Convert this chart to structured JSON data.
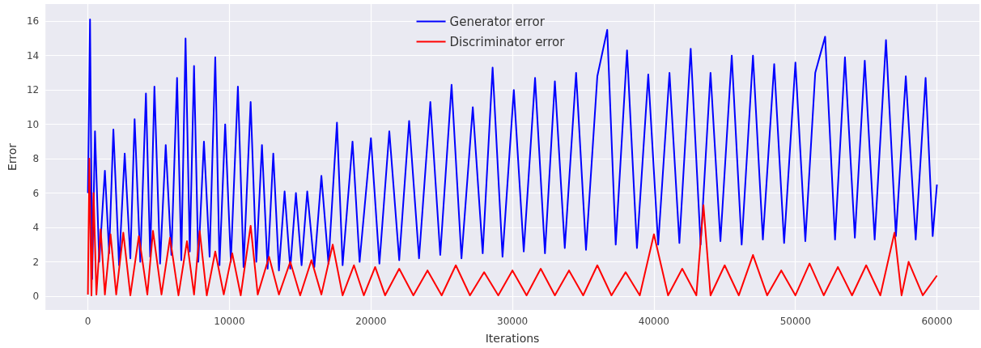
{
  "chart_data": {
    "type": "line",
    "xlabel": "Iterations",
    "ylabel": "Error",
    "xlim": [
      -3000,
      63000
    ],
    "xticks": [
      0,
      10000,
      20000,
      30000,
      40000,
      50000,
      60000
    ],
    "ylim": [
      -0.8,
      17
    ],
    "yticks": [
      0,
      2,
      4,
      6,
      8,
      10,
      12,
      14,
      16
    ],
    "grid": true,
    "legend": "top",
    "marker": "none",
    "line_style": "solid",
    "series": [
      {
        "name": "Generator error",
        "color": "#0000ff",
        "x": [
          0,
          150,
          300,
          500,
          800,
          1200,
          1500,
          1800,
          2200,
          2600,
          3000,
          3300,
          3700,
          4100,
          4400,
          4700,
          5100,
          5500,
          5900,
          6300,
          6600,
          6900,
          7200,
          7500,
          7800,
          8200,
          8600,
          9000,
          9300,
          9700,
          10100,
          10600,
          11000,
          11500,
          11900,
          12300,
          12700,
          13100,
          13500,
          13900,
          14300,
          14700,
          15100,
          15500,
          16000,
          16500,
          17000,
          17600,
          18000,
          18700,
          19200,
          20000,
          20600,
          21300,
          22000,
          22700,
          23400,
          24200,
          24900,
          25700,
          26400,
          27200,
          27900,
          28600,
          29300,
          30100,
          30800,
          31600,
          32300,
          33000,
          33700,
          34500,
          35200,
          36000,
          36700,
          37300,
          38100,
          38800,
          39600,
          40300,
          41100,
          41800,
          42600,
          43300,
          44000,
          44700,
          45500,
          46200,
          47000,
          47700,
          48500,
          49200,
          50000,
          50700,
          51400,
          52100,
          52800,
          53500,
          54200,
          54900,
          55600,
          56400,
          57100,
          57800,
          58500,
          59200,
          59700,
          60000
        ],
        "values": [
          6,
          16.1,
          1.0,
          9.6,
          2.0,
          7.3,
          2.5,
          9.7,
          1.8,
          8.3,
          2.2,
          10.3,
          2.0,
          11.8,
          2.3,
          12.2,
          1.9,
          8.8,
          2.4,
          12.7,
          2.1,
          15.0,
          2.6,
          13.4,
          2.0,
          9.0,
          2.3,
          13.9,
          1.8,
          10.0,
          2.0,
          12.2,
          1.7,
          11.3,
          2.0,
          8.8,
          1.6,
          8.3,
          1.5,
          6.1,
          1.6,
          6.0,
          1.8,
          6.1,
          1.7,
          7.0,
          1.9,
          10.1,
          1.8,
          9.0,
          2.0,
          9.2,
          1.9,
          9.6,
          2.1,
          10.2,
          2.2,
          11.3,
          2.4,
          12.3,
          2.2,
          11.0,
          2.5,
          13.3,
          2.3,
          12.0,
          2.6,
          12.7,
          2.5,
          12.5,
          2.8,
          13.0,
          2.7,
          12.8,
          15.5,
          3.0,
          14.3,
          2.8,
          12.9,
          3.0,
          13.0,
          3.1,
          14.4,
          3.0,
          13.0,
          3.2,
          14.0,
          3.0,
          14.0,
          3.3,
          13.5,
          3.1,
          13.6,
          3.2,
          13.0,
          15.1,
          3.3,
          13.9,
          3.4,
          13.7,
          3.3,
          14.9,
          3.5,
          12.8,
          3.3,
          12.7,
          3.5,
          6.5
        ]
      },
      {
        "name": "Discriminator error",
        "color": "#ff0000",
        "x": [
          0,
          100,
          250,
          400,
          600,
          900,
          1200,
          1600,
          2000,
          2500,
          3000,
          3600,
          4200,
          4600,
          5200,
          5800,
          6400,
          7000,
          7500,
          7900,
          8400,
          9000,
          9600,
          10200,
          10800,
          11500,
          12000,
          12800,
          13500,
          14300,
          15000,
          15800,
          16500,
          17300,
          18000,
          18800,
          19500,
          20300,
          21000,
          22000,
          23000,
          24000,
          25000,
          26000,
          27000,
          28000,
          29000,
          30000,
          31000,
          32000,
          33000,
          34000,
          35000,
          36000,
          37000,
          38000,
          39000,
          40000,
          41000,
          42000,
          43000,
          43500,
          44000,
          45000,
          46000,
          47000,
          48000,
          49000,
          50000,
          51000,
          52000,
          53000,
          54000,
          55000,
          56000,
          57000,
          57500,
          58000,
          59000,
          60000
        ],
        "values": [
          0.1,
          8.0,
          0.05,
          6.0,
          0.1,
          3.9,
          0.1,
          3.6,
          0.1,
          3.7,
          0.05,
          3.5,
          0.1,
          3.8,
          0.1,
          3.4,
          0.05,
          3.2,
          0.1,
          3.8,
          0.05,
          2.6,
          0.1,
          2.5,
          0.05,
          4.1,
          0.1,
          2.3,
          0.1,
          2.0,
          0.05,
          2.1,
          0.1,
          3.0,
          0.05,
          1.8,
          0.05,
          1.7,
          0.05,
          1.6,
          0.05,
          1.5,
          0.05,
          1.8,
          0.05,
          1.4,
          0.05,
          1.5,
          0.05,
          1.6,
          0.05,
          1.5,
          0.05,
          1.8,
          0.05,
          1.4,
          0.05,
          3.6,
          0.05,
          1.6,
          0.05,
          5.3,
          0.05,
          1.8,
          0.05,
          2.4,
          0.05,
          1.5,
          0.05,
          1.9,
          0.05,
          1.7,
          0.05,
          1.8,
          0.05,
          3.7,
          0.05,
          2.0,
          0.05,
          1.2
        ]
      }
    ]
  }
}
